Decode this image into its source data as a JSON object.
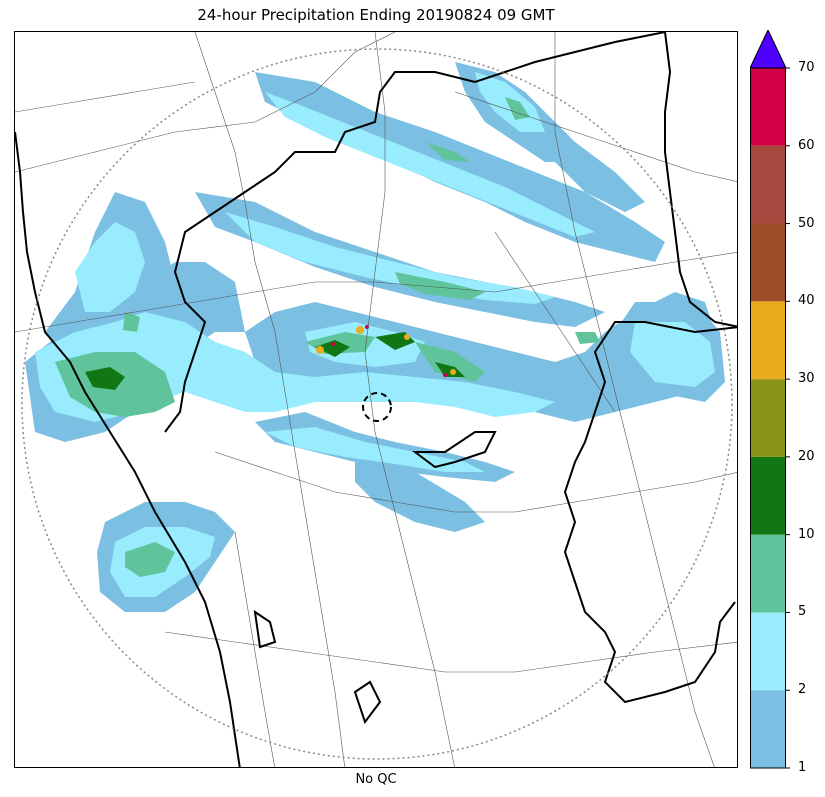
{
  "title": "24-hour Precipitation Ending 20190824 09 GMT",
  "xlabel": "No QC",
  "colorbar": {
    "levels": [
      1,
      2,
      5,
      10,
      20,
      30,
      40,
      50,
      60,
      70
    ],
    "tick_labels": [
      "1",
      "2",
      "5",
      "10",
      "20",
      "30",
      "40",
      "50",
      "60",
      "70"
    ],
    "colors": [
      "#7bbfe3",
      "#98ecfd",
      "#5fc49b",
      "#117715",
      "#8c9418",
      "#e9ac1c",
      "#9b4e27",
      "#a6493f",
      "#d10045"
    ],
    "overflow_color": "#4d00ff"
  },
  "map": {
    "radar_range_ring": "dotted-circle",
    "radar_site_marker": "dashed-circle",
    "coastline_color": "#000000",
    "district_border_color": "#555555"
  }
}
